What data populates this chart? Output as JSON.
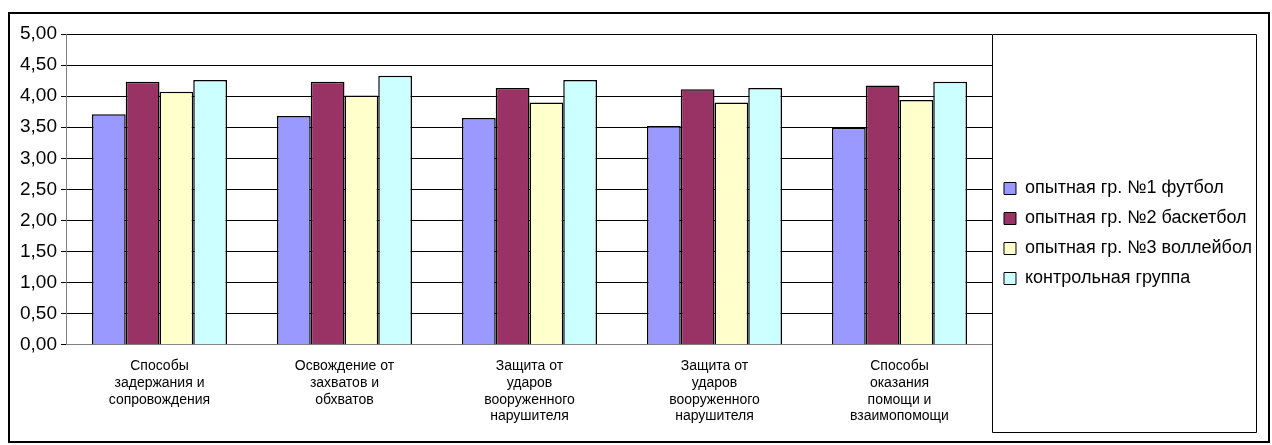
{
  "chart_data": {
    "type": "bar",
    "categories": [
      "Способы\nзадержания и\nсопровождения",
      "Освождение от\nзахватов и\nобхватов",
      "Защита от\nударов\nвооруженного\nнарушителя",
      "Защита от\nударов\nвооруженного\nнарушителя",
      "Способы\nоказания\nпомощи и\nвзаимопомощи"
    ],
    "series": [
      {
        "name": "опытная гр. №1 футбол",
        "color": "#9999ff",
        "values": [
          3.71,
          3.68,
          3.65,
          3.52,
          3.49
        ]
      },
      {
        "name": "опытная гр. №2 баскетбол",
        "color": "#993366",
        "values": [
          4.23,
          4.23,
          4.13,
          4.11,
          4.17
        ]
      },
      {
        "name": "опытная гр. №3 воллейбол",
        "color": "#ffffcc",
        "values": [
          4.07,
          4.01,
          3.9,
          3.9,
          3.94
        ]
      },
      {
        "name": "контрольная группа",
        "color": "#ccffff",
        "values": [
          4.26,
          4.33,
          4.26,
          4.13,
          4.23
        ]
      }
    ],
    "ylim": [
      0,
      5
    ],
    "yticks": [
      {
        "value": 0,
        "label": "0,00"
      },
      {
        "value": 0.5,
        "label": "0,50"
      },
      {
        "value": 1,
        "label": "1,00"
      },
      {
        "value": 1.5,
        "label": "1,50"
      },
      {
        "value": 2,
        "label": "2,00"
      },
      {
        "value": 2.5,
        "label": "2,50"
      },
      {
        "value": 3,
        "label": "3,00"
      },
      {
        "value": 3.5,
        "label": "3,50"
      },
      {
        "value": 4,
        "label": "4,00"
      },
      {
        "value": 4.5,
        "label": "4,50"
      },
      {
        "value": 5,
        "label": "5,00"
      }
    ],
    "grid": "y",
    "legend": "right"
  }
}
